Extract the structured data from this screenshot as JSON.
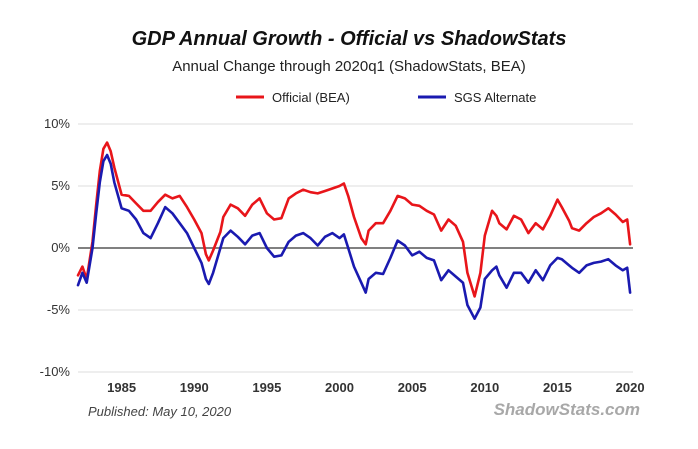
{
  "header": {
    "title": "GDP Annual Growth - Official vs ShadowStats",
    "subtitle": "Annual Change through 2020q1  (ShadowStats, BEA)"
  },
  "footer": {
    "published": "Published: May 10, 2020",
    "watermark": "ShadowStats.com"
  },
  "colors": {
    "official": "#e8151a",
    "sgs": "#1a1ab0",
    "zero_line": "#808080",
    "grid": "#dddddd"
  },
  "chart_data": {
    "type": "line",
    "title": "GDP Annual Growth - Official vs ShadowStats",
    "subtitle": "Annual Change through 2020q1  (ShadowStats, BEA)",
    "xlabel": "",
    "ylabel": "",
    "xlim": [
      1982,
      2020.2
    ],
    "ylim": [
      -10,
      10
    ],
    "x_ticks": [
      1985,
      1990,
      1995,
      2000,
      2005,
      2010,
      2015,
      2020
    ],
    "x_tick_labels": [
      "1985",
      "1990",
      "1995",
      "2000",
      "2005",
      "2010",
      "2015",
      "2020"
    ],
    "y_ticks": [
      -10,
      -5,
      0,
      5,
      10
    ],
    "y_tick_labels": [
      "-10%",
      "-5%",
      "0%",
      "5%",
      "10%"
    ],
    "grid": true,
    "legend_position": "top-center",
    "series": [
      {
        "name": "Official (BEA)",
        "color": "#e8151a",
        "points": [
          [
            1982.0,
            -2.2
          ],
          [
            1982.3,
            -1.5
          ],
          [
            1982.6,
            -2.5
          ],
          [
            1983.0,
            0.5
          ],
          [
            1983.25,
            3.5
          ],
          [
            1983.5,
            6.2
          ],
          [
            1983.75,
            8.0
          ],
          [
            1984.0,
            8.5
          ],
          [
            1984.25,
            7.8
          ],
          [
            1984.5,
            6.5
          ],
          [
            1985.0,
            4.3
          ],
          [
            1985.5,
            4.2
          ],
          [
            1986.0,
            3.6
          ],
          [
            1986.5,
            3.0
          ],
          [
            1987.0,
            3.0
          ],
          [
            1987.5,
            3.7
          ],
          [
            1988.0,
            4.3
          ],
          [
            1988.5,
            4.0
          ],
          [
            1989.0,
            4.2
          ],
          [
            1989.5,
            3.3
          ],
          [
            1990.0,
            2.3
          ],
          [
            1990.5,
            1.2
          ],
          [
            1990.8,
            -0.5
          ],
          [
            1991.0,
            -1.0
          ],
          [
            1991.3,
            -0.2
          ],
          [
            1991.8,
            1.3
          ],
          [
            1992.0,
            2.5
          ],
          [
            1992.5,
            3.5
          ],
          [
            1993.0,
            3.2
          ],
          [
            1993.5,
            2.6
          ],
          [
            1994.0,
            3.5
          ],
          [
            1994.5,
            4.0
          ],
          [
            1995.0,
            2.8
          ],
          [
            1995.5,
            2.3
          ],
          [
            1996.0,
            2.4
          ],
          [
            1996.5,
            4.0
          ],
          [
            1997.0,
            4.4
          ],
          [
            1997.5,
            4.7
          ],
          [
            1998.0,
            4.5
          ],
          [
            1998.5,
            4.4
          ],
          [
            1999.0,
            4.6
          ],
          [
            1999.5,
            4.8
          ],
          [
            2000.0,
            5.0
          ],
          [
            2000.3,
            5.2
          ],
          [
            2000.6,
            4.2
          ],
          [
            2001.0,
            2.5
          ],
          [
            2001.5,
            0.8
          ],
          [
            2001.8,
            0.3
          ],
          [
            2002.0,
            1.4
          ],
          [
            2002.5,
            2.0
          ],
          [
            2003.0,
            2.0
          ],
          [
            2003.5,
            3.0
          ],
          [
            2004.0,
            4.2
          ],
          [
            2004.5,
            4.0
          ],
          [
            2005.0,
            3.5
          ],
          [
            2005.5,
            3.4
          ],
          [
            2006.0,
            3.0
          ],
          [
            2006.5,
            2.7
          ],
          [
            2007.0,
            1.4
          ],
          [
            2007.5,
            2.3
          ],
          [
            2008.0,
            1.8
          ],
          [
            2008.5,
            0.5
          ],
          [
            2008.8,
            -2.0
          ],
          [
            2009.3,
            -3.9
          ],
          [
            2009.7,
            -2.0
          ],
          [
            2010.0,
            1.0
          ],
          [
            2010.5,
            3.0
          ],
          [
            2010.8,
            2.6
          ],
          [
            2011.0,
            2.0
          ],
          [
            2011.5,
            1.5
          ],
          [
            2012.0,
            2.6
          ],
          [
            2012.5,
            2.3
          ],
          [
            2013.0,
            1.2
          ],
          [
            2013.5,
            2.0
          ],
          [
            2014.0,
            1.5
          ],
          [
            2014.5,
            2.6
          ],
          [
            2015.0,
            3.9
          ],
          [
            2015.3,
            3.3
          ],
          [
            2015.8,
            2.2
          ],
          [
            2016.0,
            1.6
          ],
          [
            2016.5,
            1.4
          ],
          [
            2017.0,
            2.0
          ],
          [
            2017.5,
            2.5
          ],
          [
            2018.0,
            2.8
          ],
          [
            2018.5,
            3.2
          ],
          [
            2019.0,
            2.7
          ],
          [
            2019.5,
            2.1
          ],
          [
            2019.8,
            2.3
          ],
          [
            2020.0,
            0.3
          ]
        ]
      },
      {
        "name": "SGS Alternate",
        "color": "#1a1ab0",
        "points": [
          [
            1982.0,
            -3.0
          ],
          [
            1982.3,
            -2.0
          ],
          [
            1982.6,
            -2.8
          ],
          [
            1983.0,
            0.0
          ],
          [
            1983.25,
            2.8
          ],
          [
            1983.5,
            5.3
          ],
          [
            1983.75,
            7.0
          ],
          [
            1984.0,
            7.5
          ],
          [
            1984.25,
            6.8
          ],
          [
            1984.5,
            5.3
          ],
          [
            1985.0,
            3.2
          ],
          [
            1985.5,
            3.0
          ],
          [
            1986.0,
            2.3
          ],
          [
            1986.5,
            1.2
          ],
          [
            1987.0,
            0.8
          ],
          [
            1987.5,
            2.0
          ],
          [
            1988.0,
            3.3
          ],
          [
            1988.5,
            2.8
          ],
          [
            1989.0,
            2.0
          ],
          [
            1989.5,
            1.2
          ],
          [
            1990.0,
            0.0
          ],
          [
            1990.5,
            -1.2
          ],
          [
            1990.8,
            -2.5
          ],
          [
            1991.0,
            -2.9
          ],
          [
            1991.3,
            -2.0
          ],
          [
            1991.8,
            0.0
          ],
          [
            1992.0,
            0.8
          ],
          [
            1992.5,
            1.4
          ],
          [
            1993.0,
            0.9
          ],
          [
            1993.5,
            0.3
          ],
          [
            1994.0,
            1.0
          ],
          [
            1994.5,
            1.2
          ],
          [
            1995.0,
            0.0
          ],
          [
            1995.5,
            -0.7
          ],
          [
            1996.0,
            -0.6
          ],
          [
            1996.5,
            0.5
          ],
          [
            1997.0,
            1.0
          ],
          [
            1997.5,
            1.2
          ],
          [
            1998.0,
            0.8
          ],
          [
            1998.5,
            0.2
          ],
          [
            1999.0,
            0.9
          ],
          [
            1999.5,
            1.2
          ],
          [
            2000.0,
            0.8
          ],
          [
            2000.3,
            1.1
          ],
          [
            2000.6,
            0.0
          ],
          [
            2001.0,
            -1.5
          ],
          [
            2001.5,
            -2.8
          ],
          [
            2001.8,
            -3.6
          ],
          [
            2002.0,
            -2.5
          ],
          [
            2002.5,
            -2.0
          ],
          [
            2003.0,
            -2.1
          ],
          [
            2003.5,
            -0.8
          ],
          [
            2004.0,
            0.6
          ],
          [
            2004.5,
            0.2
          ],
          [
            2005.0,
            -0.6
          ],
          [
            2005.5,
            -0.3
          ],
          [
            2006.0,
            -0.8
          ],
          [
            2006.5,
            -1.0
          ],
          [
            2007.0,
            -2.6
          ],
          [
            2007.5,
            -1.8
          ],
          [
            2008.0,
            -2.3
          ],
          [
            2008.5,
            -2.8
          ],
          [
            2008.8,
            -4.6
          ],
          [
            2009.3,
            -5.7
          ],
          [
            2009.7,
            -4.8
          ],
          [
            2010.0,
            -2.5
          ],
          [
            2010.5,
            -1.8
          ],
          [
            2010.8,
            -1.5
          ],
          [
            2011.0,
            -2.2
          ],
          [
            2011.5,
            -3.2
          ],
          [
            2012.0,
            -2.0
          ],
          [
            2012.5,
            -2.0
          ],
          [
            2013.0,
            -2.8
          ],
          [
            2013.5,
            -1.8
          ],
          [
            2014.0,
            -2.6
          ],
          [
            2014.5,
            -1.4
          ],
          [
            2015.0,
            -0.8
          ],
          [
            2015.3,
            -0.9
          ],
          [
            2015.8,
            -1.4
          ],
          [
            2016.0,
            -1.6
          ],
          [
            2016.5,
            -2.0
          ],
          [
            2017.0,
            -1.4
          ],
          [
            2017.5,
            -1.2
          ],
          [
            2018.0,
            -1.1
          ],
          [
            2018.5,
            -0.9
          ],
          [
            2019.0,
            -1.4
          ],
          [
            2019.5,
            -1.8
          ],
          [
            2019.8,
            -1.6
          ],
          [
            2020.0,
            -3.6
          ]
        ]
      }
    ]
  }
}
